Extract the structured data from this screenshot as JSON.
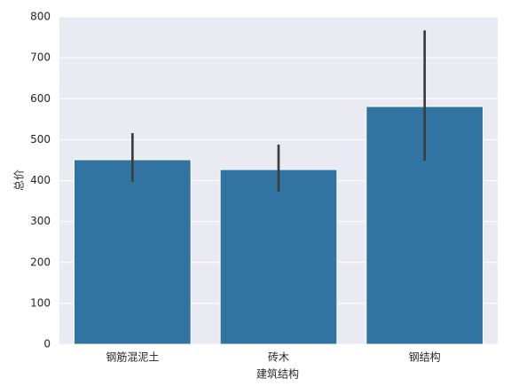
{
  "chart_data": {
    "type": "bar",
    "x_label": "建筑结构",
    "y_label": "总价",
    "categories": [
      "钢筋混泥土",
      "砖木",
      "钢结构"
    ],
    "values": [
      451,
      427,
      581
    ],
    "ci_low": [
      397,
      373,
      449
    ],
    "ci_high": [
      516,
      488,
      767
    ],
    "color": "#3274a1",
    "error_color": "#3d3d3d",
    "ylim": [
      0,
      800
    ],
    "yticks": [
      0,
      100,
      200,
      300,
      400,
      500,
      600,
      700,
      800
    ],
    "grid": true
  }
}
